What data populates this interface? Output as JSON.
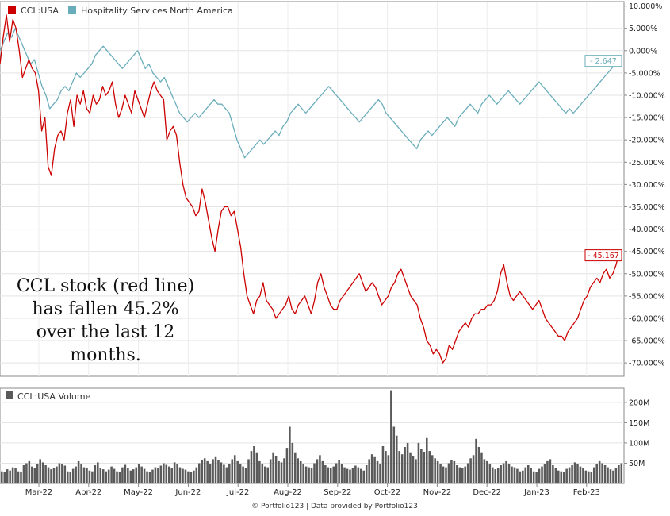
{
  "chart_data": [
    {
      "type": "line",
      "series": [
        {
          "name": "CCL:USA",
          "color": "#cc0000",
          "end_value": -45.167,
          "end_label": "- 45.167",
          "values": [
            -3,
            3,
            8,
            2,
            7,
            5,
            0,
            -6,
            -4,
            -2,
            -4,
            -5,
            -9,
            -18,
            -15,
            -26,
            -28,
            -22,
            -19,
            -18,
            -20,
            -14,
            -11,
            -17,
            -10,
            -12,
            -9,
            -13,
            -14,
            -10,
            -12,
            -11,
            -8,
            -10,
            -9,
            -7,
            -12,
            -15,
            -13,
            -10,
            -12,
            -14,
            -9,
            -11,
            -13,
            -15,
            -12,
            -9,
            -7,
            -9,
            -10,
            -11,
            -20,
            -18,
            -17,
            -19,
            -25,
            -30,
            -33,
            -34,
            -35,
            -37,
            -36,
            -31,
            -34,
            -38,
            -42,
            -45,
            -40,
            -36,
            -35,
            -35,
            -37,
            -36,
            -40,
            -44,
            -50,
            -55,
            -57,
            -59,
            -56,
            -55,
            -52,
            -56,
            -57,
            -58,
            -60,
            -59,
            -58,
            -57,
            -55,
            -58,
            -59,
            -57,
            -56,
            -55,
            -57,
            -59,
            -56,
            -52,
            -50,
            -53,
            -55,
            -57,
            -58,
            -58,
            -56,
            -55,
            -54,
            -53,
            -52,
            -51,
            -50,
            -52,
            -54,
            -53,
            -52,
            -53,
            -55,
            -57,
            -56,
            -55,
            -53,
            -52,
            -50,
            -49,
            -51,
            -53,
            -55,
            -56,
            -57,
            -60,
            -62,
            -65,
            -66,
            -68,
            -67,
            -68,
            -70,
            -69,
            -66,
            -67,
            -65,
            -63,
            -62,
            -61,
            -62,
            -60,
            -59,
            -59,
            -58,
            -58,
            -57,
            -57,
            -56,
            -54,
            -50,
            -48,
            -52,
            -55,
            -56,
            -55,
            -54,
            -55,
            -56,
            -57,
            -58,
            -57,
            -56,
            -58,
            -60,
            -61,
            -62,
            -63,
            -64,
            -64,
            -65,
            -63,
            -62,
            -61,
            -60,
            -58,
            -56,
            -55,
            -53,
            -52,
            -51,
            -52,
            -50,
            -49,
            -51,
            -50,
            -48,
            -45.167
          ]
        },
        {
          "name": "Hospitality Services North America",
          "color": "#6aadba",
          "end_value": -2.647,
          "end_label": "- 2.647",
          "values": [
            0,
            2,
            4,
            3,
            5,
            3,
            1,
            -1,
            -3,
            -2,
            -5,
            -8,
            -10,
            -13,
            -12,
            -11,
            -9,
            -8,
            -9,
            -7,
            -5,
            -6,
            -5,
            -4,
            -3,
            -1,
            0,
            1,
            0,
            -1,
            -2,
            -3,
            -4,
            -3,
            -2,
            -1,
            0,
            -2,
            -4,
            -3,
            -5,
            -6,
            -7,
            -6,
            -8,
            -10,
            -12,
            -14,
            -15,
            -16,
            -15,
            -14,
            -15,
            -14,
            -13,
            -12,
            -11,
            -12,
            -12,
            -13,
            -14,
            -17,
            -20,
            -22,
            -24,
            -23,
            -22,
            -21,
            -20,
            -21,
            -20,
            -19,
            -18,
            -19,
            -17,
            -16,
            -14,
            -13,
            -12,
            -13,
            -14,
            -13,
            -12,
            -11,
            -10,
            -9,
            -8,
            -9,
            -10,
            -11,
            -12,
            -13,
            -14,
            -15,
            -16,
            -15,
            -14,
            -13,
            -12,
            -11,
            -12,
            -14,
            -15,
            -16,
            -17,
            -18,
            -19,
            -20,
            -21,
            -22,
            -20,
            -19,
            -18,
            -19,
            -18,
            -17,
            -16,
            -15,
            -16,
            -17,
            -15,
            -14,
            -13,
            -12,
            -13,
            -14,
            -12,
            -11,
            -10,
            -11,
            -12,
            -11,
            -10,
            -9,
            -10,
            -11,
            -12,
            -11,
            -10,
            -9,
            -8,
            -7,
            -8,
            -9,
            -10,
            -11,
            -12,
            -13,
            -14,
            -13,
            -14,
            -13,
            -12,
            -11,
            -10,
            -9,
            -8,
            -7,
            -6,
            -5,
            -4,
            -3,
            -2.647
          ]
        }
      ],
      "legend": [
        "CCL:USA",
        "Hospitality Services North America"
      ],
      "legend_position": "top-left",
      "ylim": [
        -73,
        11
      ],
      "y_ticks": [
        "10.000%",
        "5.000%",
        "0.000%",
        "-5.000%",
        "-10.000%",
        "-15.000%",
        "-20.000%",
        "-25.000%",
        "-30.000%",
        "-35.000%",
        "-40.000%",
        "-45.000%",
        "-50.000%",
        "-55.000%",
        "-60.000%",
        "-65.000%",
        "-70.000%"
      ],
      "y_tick_values": [
        10,
        5,
        0,
        -5,
        -10,
        -15,
        -20,
        -25,
        -30,
        -35,
        -40,
        -45,
        -50,
        -55,
        -60,
        -65,
        -70
      ],
      "y_axis_side": "right",
      "grid": true,
      "annotation": [
        "CCL stock (red line)",
        "has fallen 45.2%",
        "over the last 12",
        "months."
      ]
    },
    {
      "type": "bar",
      "title": "CCL:USA Volume",
      "color": "#5a5a5a",
      "ylim": [
        0,
        235
      ],
      "y_ticks": [
        "50M",
        "100M",
        "150M",
        "200M"
      ],
      "y_tick_values": [
        50,
        100,
        150,
        200
      ],
      "y_axis_side": "right",
      "grid": true,
      "values": [
        30,
        28,
        35,
        32,
        40,
        38,
        30,
        28,
        45,
        50,
        55,
        42,
        38,
        48,
        60,
        52,
        45,
        40,
        35,
        38,
        42,
        50,
        48,
        44,
        30,
        28,
        36,
        42,
        55,
        48,
        40,
        38,
        32,
        30,
        45,
        52,
        38,
        35,
        30,
        34,
        42,
        36,
        30,
        28,
        40,
        46,
        38,
        32,
        35,
        40,
        48,
        42,
        36,
        30,
        28,
        34,
        40,
        38,
        44,
        50,
        46,
        42,
        38,
        52,
        48,
        40,
        36,
        34,
        30,
        28,
        32,
        40,
        50,
        58,
        62,
        55,
        48,
        60,
        65,
        58,
        52,
        46,
        40,
        48,
        60,
        70,
        55,
        48,
        42,
        38,
        60,
        80,
        92,
        75,
        55,
        48,
        42,
        40,
        60,
        75,
        68,
        55,
        52,
        62,
        88,
        140,
        100,
        75,
        62,
        55,
        48,
        42,
        40,
        38,
        50,
        60,
        70,
        55,
        45,
        40,
        38,
        42,
        50,
        58,
        48,
        40,
        36,
        34,
        38,
        44,
        40,
        36,
        32,
        45,
        60,
        72,
        65,
        55,
        48,
        92,
        80,
        70,
        230,
        140,
        118,
        80,
        72,
        90,
        100,
        75,
        68,
        60,
        100,
        85,
        78,
        112,
        80,
        70,
        62,
        55,
        48,
        42,
        40,
        50,
        58,
        55,
        45,
        40,
        38,
        42,
        50,
        62,
        70,
        110,
        90,
        75,
        60,
        55,
        48,
        40,
        35,
        38,
        45,
        50,
        55,
        48,
        42,
        40,
        36,
        30,
        32,
        40,
        45,
        38,
        30,
        28,
        36,
        42,
        48,
        55,
        60,
        45,
        38,
        32,
        30,
        28,
        36,
        40,
        45,
        52,
        48,
        42,
        38,
        32,
        30,
        28,
        40,
        48,
        55,
        50,
        45,
        40,
        35,
        32,
        38,
        45,
        50
      ]
    }
  ],
  "x_axis": {
    "labels": [
      "Mar-22",
      "Apr-22",
      "May-22",
      "Jun-22",
      "Jul-22",
      "Aug-22",
      "Sep-22",
      "Oct-22",
      "Nov-22",
      "Dec-22",
      "Jan-23",
      "Feb-23"
    ]
  },
  "credit": "© Portfolio123 | Data provided by Portfolio123"
}
